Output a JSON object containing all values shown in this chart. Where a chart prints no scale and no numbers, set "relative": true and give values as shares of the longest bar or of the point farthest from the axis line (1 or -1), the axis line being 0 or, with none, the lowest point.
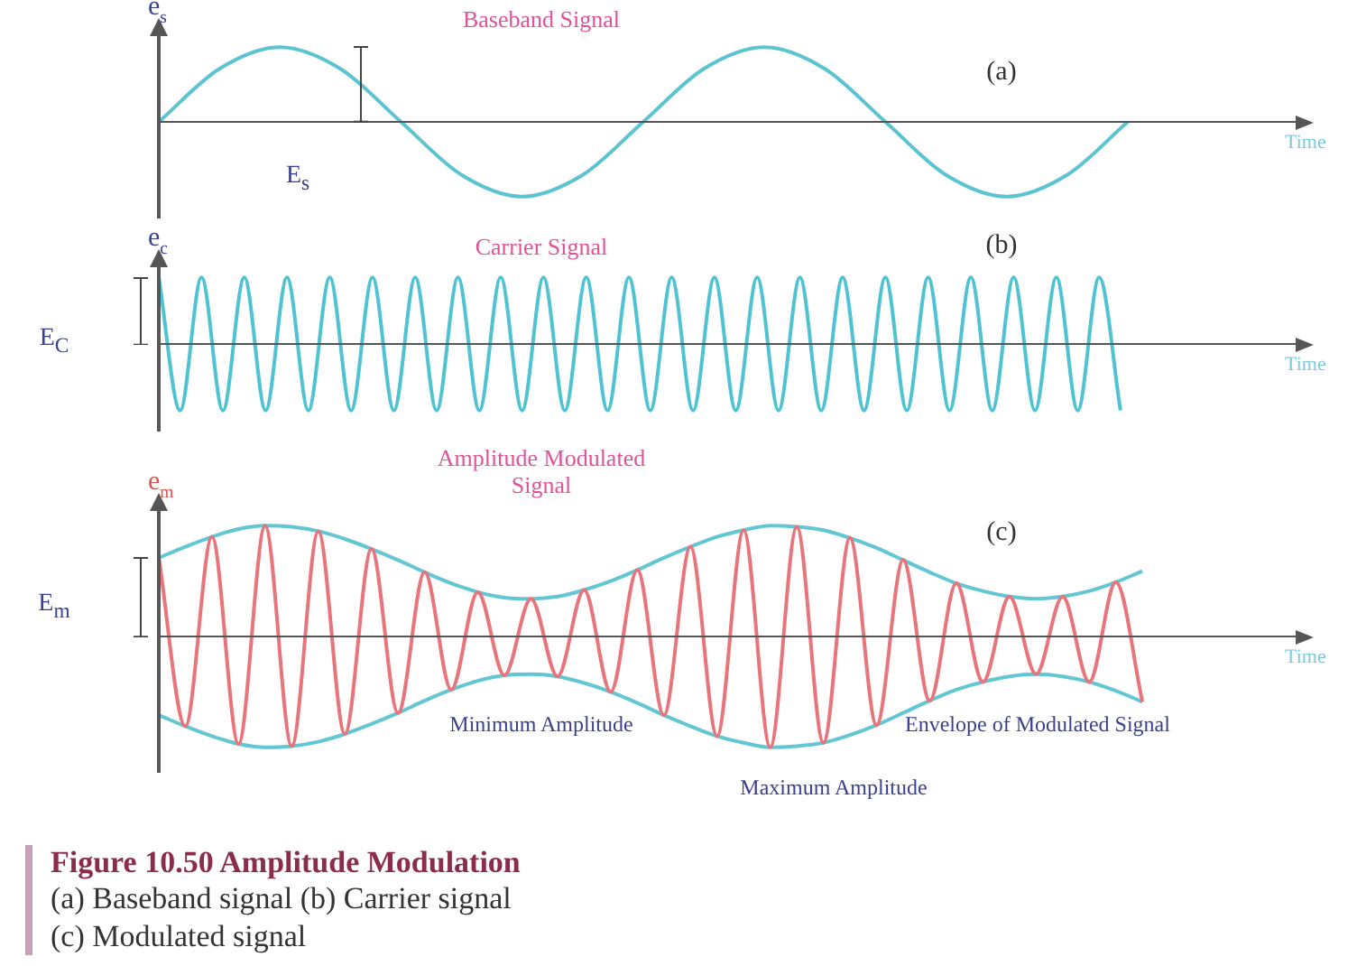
{
  "chart_data": [
    {
      "type": "line",
      "relative": true,
      "ylabel": "e$_{s}$",
      "xlabel": "Time",
      "annotations": [
        "Baseband Signal",
        "(a)",
        "E$_{s}$"
      ],
      "categories": [
        null,
        null,
        null,
        null,
        null,
        null,
        null,
        null,
        null,
        null,
        null,
        null,
        null,
        null,
        null,
        null,
        null,
        null,
        null
      ],
      "series": [
        {
          "color": "#5bc4d0",
          "values": [
            0,
            0.71,
            1,
            0.71,
            0,
            -0.71,
            -1,
            -0.71,
            0,
            0.71,
            1,
            0.71,
            0,
            -0.71,
            -1,
            -0.71,
            0,
            null,
            null
          ]
        }
      ]
    },
    {
      "type": "line",
      "relative": true,
      "ylabel": "e$_{c}$",
      "xlabel": "Time",
      "annotations": [
        "Carrier Signal",
        "(b)",
        "E$_{C}$"
      ],
      "categories": [
        null,
        null,
        null,
        null,
        null,
        null,
        null,
        null,
        null,
        null,
        null,
        null,
        null,
        null,
        null,
        null,
        null,
        null,
        null,
        null,
        null,
        null,
        null,
        null,
        null,
        null,
        null,
        null,
        null,
        null,
        null,
        null,
        null,
        null,
        null,
        null,
        null,
        null,
        null,
        null,
        null,
        null,
        null,
        null,
        null,
        null,
        null,
        null,
        null,
        null,
        null,
        null
      ],
      "series": [
        {
          "color": "#4fc3d2",
          "values": [
            1,
            -1,
            1,
            -1,
            1,
            -1,
            1,
            -1,
            1,
            -1,
            1,
            -1,
            1,
            -1,
            1,
            -1,
            1,
            -1,
            1,
            -1,
            1,
            -1,
            1,
            -1,
            1,
            -1,
            1,
            -1,
            1,
            -1,
            1,
            -1,
            1,
            -1,
            1,
            -1,
            1,
            -1,
            1,
            -1,
            1,
            -1,
            1,
            -1,
            1,
            -1,
            null,
            null,
            null,
            null,
            null,
            null
          ]
        }
      ]
    },
    {
      "type": "line",
      "relative": true,
      "ylabel": "e$_{m}$",
      "xlabel": "Time",
      "annotations": [
        "Amplitude Modulated Signal",
        "(c)",
        "E$_{m}$",
        "Minimum Amplitude",
        "Envelope of Modulated Signal",
        "Maximum Amplitude",
        "Figure 10.50  Amplitude Modulation",
        "(a) Baseband signal (b) Carrier signal",
        "(c) Modulated signal"
      ],
      "categories": [
        null,
        null,
        null,
        null,
        null,
        null,
        null,
        null,
        null,
        null,
        null,
        null,
        null,
        null,
        null,
        null,
        null,
        null,
        null,
        null,
        null,
        null,
        null,
        null,
        null,
        null,
        null,
        null,
        null,
        null,
        null,
        null,
        null,
        null,
        null,
        null,
        null,
        null,
        null,
        null,
        null,
        null
      ],
      "series": [
        {
          "color": "#e8747c",
          "values": [
            0.71,
            -0.81,
            0.9,
            -0.97,
            1,
            -0.99,
            0.95,
            -0.88,
            0.79,
            -0.69,
            0.58,
            -0.48,
            0.4,
            -0.35,
            0.34,
            -0.36,
            0.42,
            -0.5,
            0.6,
            -0.71,
            0.81,
            -0.9,
            0.96,
            -1,
            0.99,
            -0.96,
            0.89,
            -0.8,
            0.69,
            -0.58,
            0.48,
            -0.41,
            0.36,
            -0.34,
            0.36,
            -0.41,
            0.49,
            -0.59,
            null,
            null,
            null,
            null
          ]
        },
        {
          "color": "#62c6d3",
          "values": [
            0.71,
            0.81,
            0.9,
            0.97,
            1,
            0.99,
            0.95,
            0.88,
            0.79,
            0.69,
            0.58,
            0.48,
            0.4,
            0.35,
            0.34,
            0.36,
            0.42,
            0.5,
            0.6,
            0.71,
            0.81,
            0.9,
            0.96,
            1,
            0.99,
            0.96,
            0.89,
            0.8,
            0.69,
            0.58,
            0.48,
            0.41,
            0.36,
            0.34,
            0.36,
            0.41,
            0.49,
            0.59,
            null,
            null,
            null,
            null
          ]
        },
        {
          "color": "#62c6d3",
          "values": [
            -0.71,
            -0.81,
            -0.9,
            -0.97,
            -1,
            -0.99,
            -0.95,
            -0.88,
            -0.79,
            -0.69,
            -0.58,
            -0.48,
            -0.4,
            -0.35,
            -0.34,
            -0.36,
            -0.42,
            -0.5,
            -0.6,
            -0.71,
            -0.81,
            -0.9,
            -0.96,
            -1,
            -0.99,
            -0.96,
            -0.89,
            -0.8,
            -0.69,
            -0.58,
            -0.48,
            -0.41,
            -0.36,
            -0.34,
            -0.36,
            -0.41,
            -0.49,
            -0.59,
            null,
            null,
            null,
            null
          ]
        }
      ]
    }
  ]
}
